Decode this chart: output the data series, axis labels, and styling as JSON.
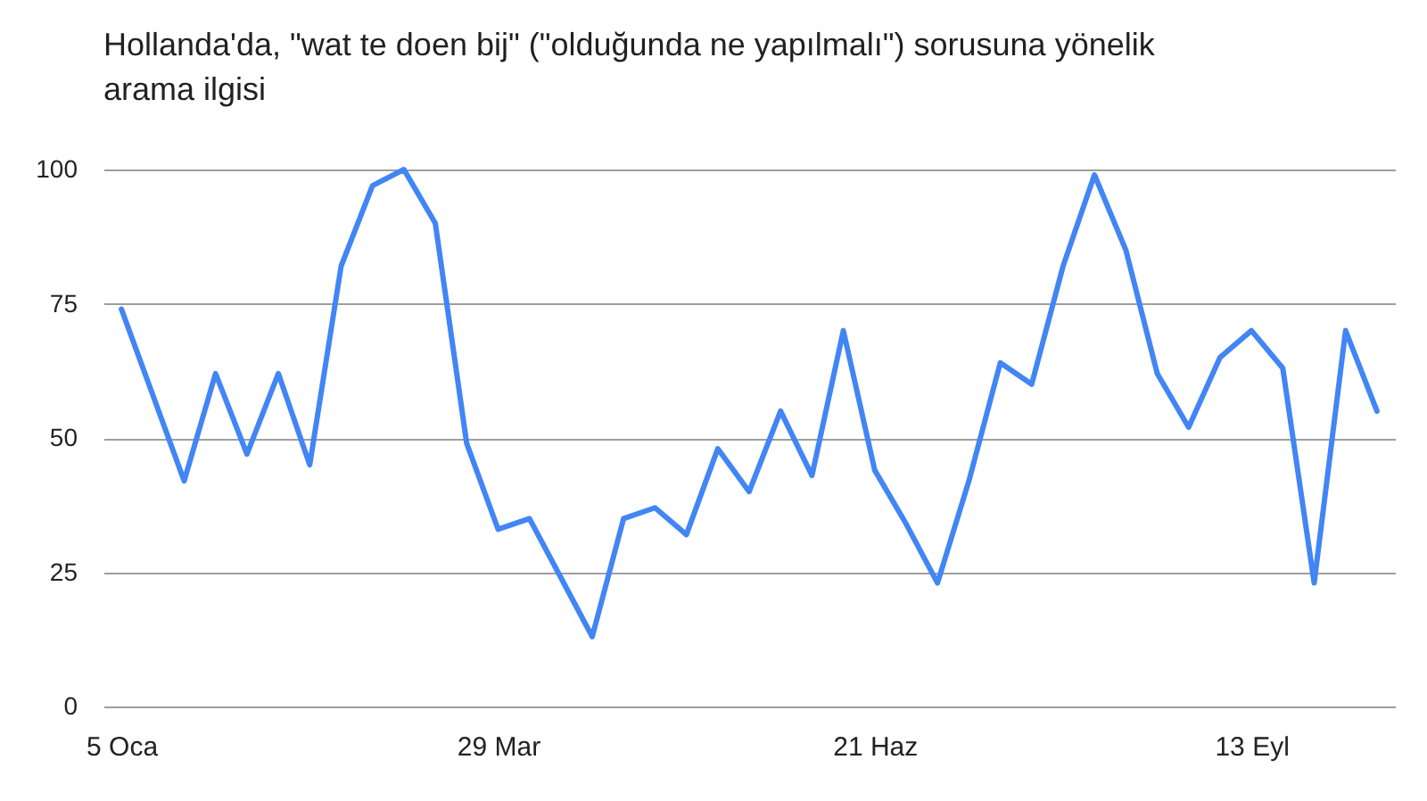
{
  "chart_data": {
    "type": "line",
    "title": "Hollanda'da, \"wat te doen bij\" (\"olduğunda ne yapılmalı\") sorusuna yönelik arama ilgisi",
    "x": [
      "--01-05",
      "--01-12",
      "--01-19",
      "--01-26",
      "--02-02",
      "--02-09",
      "--02-16",
      "--02-23",
      "--03-01",
      "--03-08",
      "--03-15",
      "--03-22",
      "--03-29",
      "--04-05",
      "--04-12",
      "--04-19",
      "--04-26",
      "--05-03",
      "--05-10",
      "--05-17",
      "--05-24",
      "--05-31",
      "--06-07",
      "--06-14",
      "--06-21",
      "--06-28",
      "--07-05",
      "--07-12",
      "--07-19",
      "--07-26",
      "--08-02",
      "--08-09",
      "--08-16",
      "--08-23",
      "--08-30",
      "--09-06",
      "--09-13",
      "--09-20",
      "--09-27",
      "--10-04",
      "--10-11"
    ],
    "values": [
      74,
      58,
      42,
      62,
      47,
      62,
      45,
      82,
      97,
      100,
      90,
      49,
      33,
      35,
      24,
      13,
      35,
      37,
      32,
      48,
      40,
      55,
      43,
      70,
      44,
      34,
      23,
      42,
      64,
      60,
      82,
      99,
      85,
      62,
      52,
      65,
      70,
      63,
      23,
      70,
      55
    ],
    "color": "#4285f4",
    "xlim": [
      "--01-01",
      "--10-15"
    ],
    "xticks": [
      {
        "value": "--01-05",
        "label": "5 Oca"
      },
      {
        "value": "--03-29",
        "label": "29 Mar"
      },
      {
        "value": "--06-21",
        "label": "21 Haz"
      },
      {
        "value": "--09-13",
        "label": "13 Eyl"
      }
    ],
    "ylim": [
      0,
      100
    ],
    "yticks": [
      0,
      25,
      50,
      75,
      100
    ],
    "grid": "y"
  }
}
